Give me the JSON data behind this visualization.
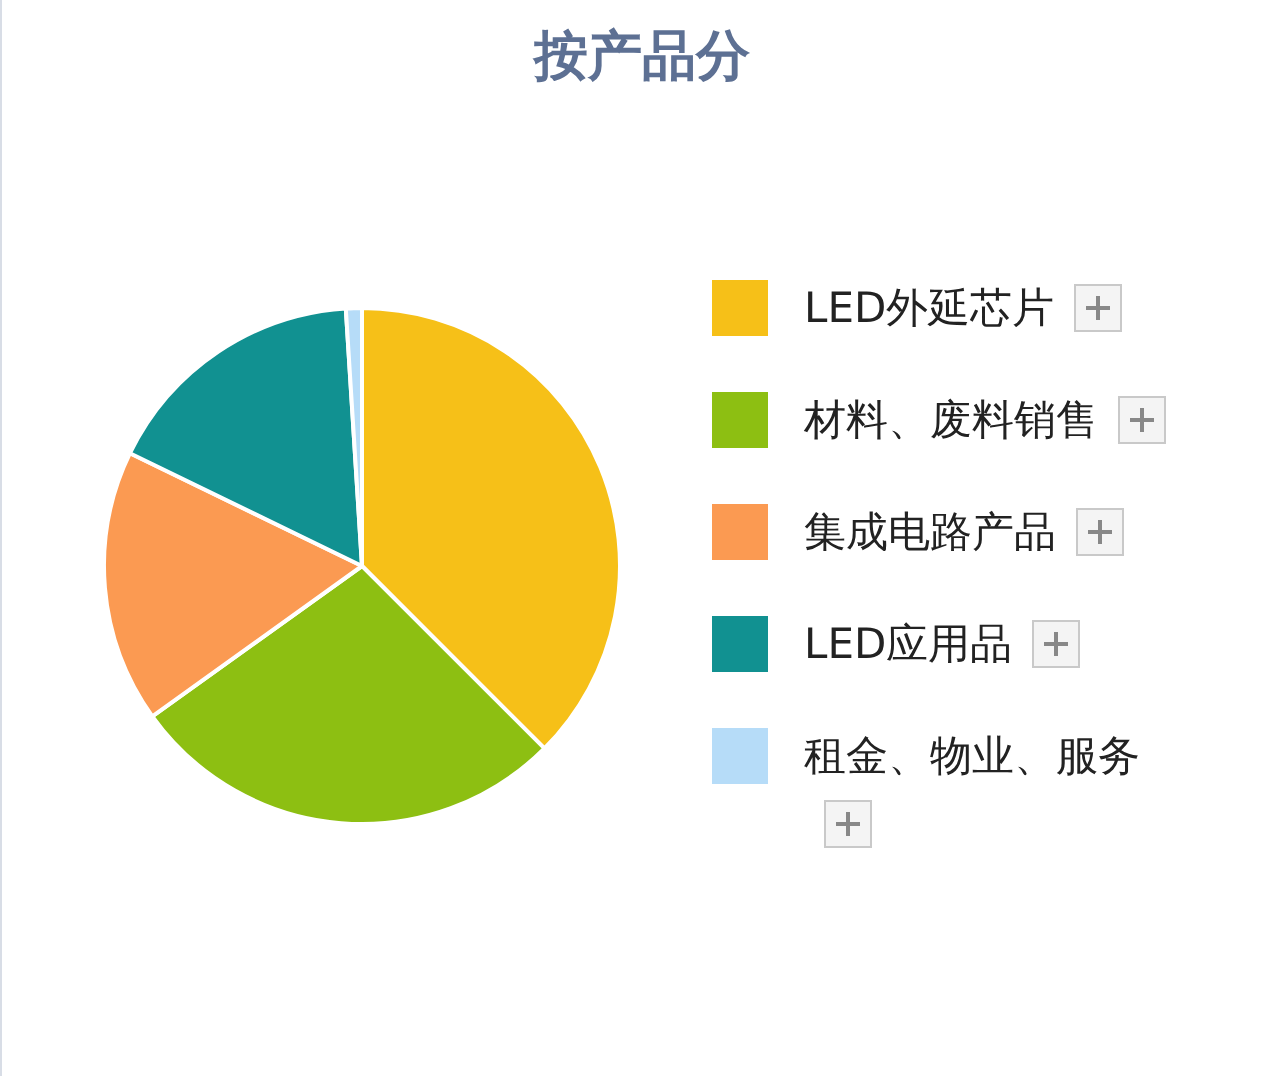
{
  "chart_data": {
    "type": "pie",
    "title": "按产品分",
    "categories": [
      "LED外延芯片",
      "材料、废料销售",
      "集成电路产品",
      "LED应用品",
      "租金、物业、服务"
    ],
    "values": [
      37.5,
      27.6,
      17.1,
      16.8,
      1.0
    ],
    "colors": [
      "#f6c018",
      "#8dbf12",
      "#fb9a52",
      "#119191",
      "#b6dcf8"
    ],
    "legend": "right"
  }
}
